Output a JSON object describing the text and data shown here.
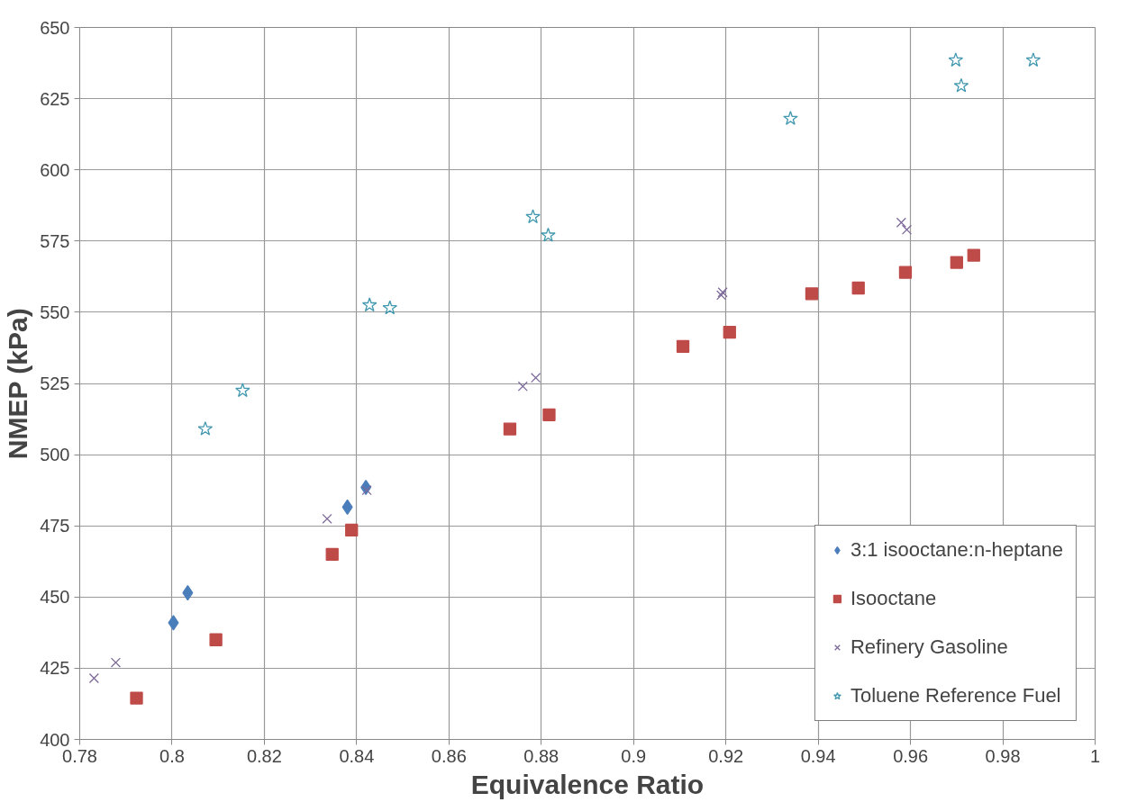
{
  "chart_data": {
    "type": "scatter",
    "xlabel": "Equivalence Ratio",
    "ylabel": "NMEP (kPa)",
    "xlim": [
      0.78,
      1.0
    ],
    "xticks": [
      0.78,
      0.8,
      0.82,
      0.84,
      0.86,
      0.88,
      0.9,
      0.92,
      0.94,
      0.96,
      0.98,
      1
    ],
    "ylim": [
      400,
      650
    ],
    "yticks": [
      400,
      425,
      450,
      475,
      500,
      525,
      550,
      575,
      600,
      625,
      650
    ],
    "grid": true,
    "legend": "bottom right",
    "series": [
      {
        "name": "3:1 isooctane:n-heptane",
        "color": "#4a7ebb",
        "marker": "diamond",
        "x": [
          0.8003,
          0.8034,
          0.838,
          0.842
        ],
        "values": [
          441,
          451.5,
          481.6,
          488.5
        ]
      },
      {
        "name": "Isooctane",
        "color": "#be4b48",
        "marker": "square",
        "x": [
          0.7923,
          0.8095,
          0.8347,
          0.8389,
          0.8732,
          0.8817,
          0.9107,
          0.9208,
          0.9386,
          0.9487,
          0.9589,
          0.97,
          0.9737
        ],
        "values": [
          414.5,
          435,
          465,
          473.5,
          509,
          514,
          538,
          543,
          556.5,
          558.5,
          564,
          567.5,
          570
        ]
      },
      {
        "name": "Refinery Gasoline",
        "color": "#7e6a9a",
        "marker": "cross",
        "x": [
          0.7831,
          0.7878,
          0.8336,
          0.8422,
          0.876,
          0.8788,
          0.919,
          0.9193,
          0.958,
          0.9592
        ],
        "values": [
          421.5,
          427,
          477.5,
          487.5,
          524,
          527,
          556,
          557,
          581.5,
          579
        ]
      },
      {
        "name": "Toluene Reference Fuel",
        "color": "#4198af",
        "marker": "star",
        "x": [
          0.8072,
          0.8153,
          0.8428,
          0.8472,
          0.8782,
          0.8815,
          0.934,
          0.9698,
          0.971,
          0.9866
        ],
        "values": [
          509,
          522.5,
          552.5,
          551.5,
          583.5,
          577,
          618,
          638.5,
          629.5,
          638.5
        ]
      }
    ]
  }
}
